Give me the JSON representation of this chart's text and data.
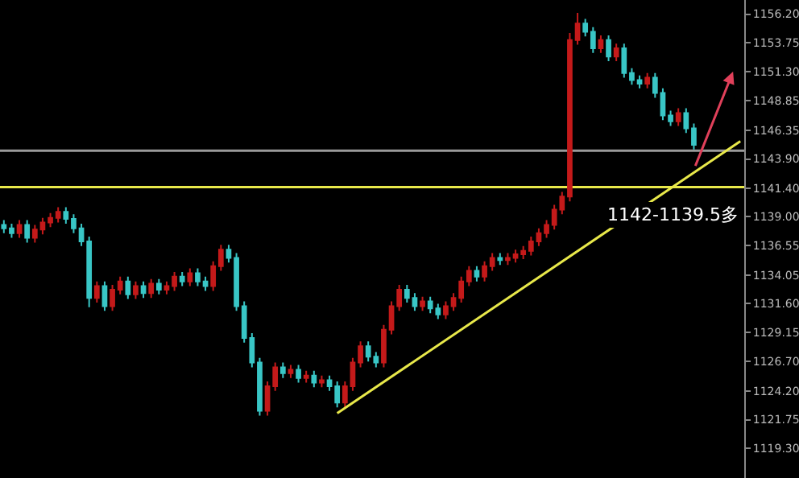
{
  "chart_data": {
    "type": "candlestick",
    "categories": [
      null,
      null,
      null,
      null,
      null,
      null,
      null,
      null,
      null,
      null,
      null,
      null,
      null,
      null,
      null,
      null,
      null,
      null,
      null,
      null,
      null,
      null,
      null,
      null,
      null,
      null,
      null,
      null,
      null,
      null,
      null,
      null,
      null,
      null,
      null,
      null,
      null,
      null,
      null,
      null,
      null,
      null,
      null,
      null,
      null,
      null,
      null,
      null,
      null,
      null,
      null,
      null,
      null,
      null,
      null,
      null,
      null,
      null,
      null,
      null,
      null,
      null,
      null,
      null,
      null,
      null,
      null,
      null,
      null,
      null,
      null,
      null,
      null,
      null,
      null,
      null,
      null,
      null,
      null,
      null,
      null,
      null,
      null,
      null,
      null,
      null,
      null,
      null,
      null,
      null,
      null,
      null,
      null,
      null,
      null,
      null
    ],
    "ohlc": [
      [
        1138.3,
        1138.7,
        1137.6,
        1138.0
      ],
      [
        1138.0,
        1138.4,
        1137.2,
        1137.6
      ],
      [
        1137.6,
        1138.7,
        1137.2,
        1138.3
      ],
      [
        1138.3,
        1138.7,
        1136.8,
        1137.2
      ],
      [
        1137.2,
        1138.3,
        1136.8,
        1137.9
      ],
      [
        1137.9,
        1138.9,
        1137.5,
        1138.5
      ],
      [
        1138.5,
        1139.3,
        1138.1,
        1138.9
      ],
      [
        1138.9,
        1139.8,
        1138.5,
        1139.4
      ],
      [
        1139.4,
        1139.8,
        1138.4,
        1138.8
      ],
      [
        1138.8,
        1139.2,
        1137.6,
        1138.0
      ],
      [
        1138.0,
        1138.4,
        1136.5,
        1136.9
      ],
      [
        1136.9,
        1137.3,
        1131.3,
        1132.1
      ],
      [
        1132.1,
        1133.5,
        1131.7,
        1133.1
      ],
      [
        1133.1,
        1133.5,
        1131.0,
        1131.4
      ],
      [
        1131.4,
        1133.2,
        1131.0,
        1132.8
      ],
      [
        1132.8,
        1133.9,
        1132.4,
        1133.5
      ],
      [
        1133.5,
        1133.9,
        1132.0,
        1132.4
      ],
      [
        1132.4,
        1133.5,
        1132.0,
        1133.1
      ],
      [
        1133.1,
        1133.5,
        1132.1,
        1132.5
      ],
      [
        1132.5,
        1133.7,
        1132.1,
        1133.3
      ],
      [
        1133.3,
        1133.7,
        1132.4,
        1132.8
      ],
      [
        1132.8,
        1133.5,
        1132.4,
        1133.1
      ],
      [
        1133.1,
        1134.3,
        1132.7,
        1133.9
      ],
      [
        1133.9,
        1134.3,
        1133.1,
        1133.5
      ],
      [
        1133.5,
        1134.6,
        1133.1,
        1134.2
      ],
      [
        1134.2,
        1134.6,
        1133.1,
        1133.5
      ],
      [
        1133.5,
        1133.9,
        1132.7,
        1133.1
      ],
      [
        1133.1,
        1135.2,
        1132.7,
        1134.8
      ],
      [
        1134.8,
        1136.6,
        1134.4,
        1136.2
      ],
      [
        1136.2,
        1136.6,
        1135.1,
        1135.5
      ],
      [
        1135.5,
        1135.9,
        1131.0,
        1131.4
      ],
      [
        1131.4,
        1131.8,
        1128.3,
        1128.7
      ],
      [
        1128.7,
        1129.1,
        1126.2,
        1126.6
      ],
      [
        1126.6,
        1127.0,
        1122.1,
        1122.5
      ],
      [
        1122.5,
        1125.0,
        1122.1,
        1124.6
      ],
      [
        1124.6,
        1126.6,
        1124.2,
        1126.2
      ],
      [
        1126.2,
        1126.6,
        1125.3,
        1125.7
      ],
      [
        1125.7,
        1126.4,
        1125.3,
        1126.0
      ],
      [
        1126.0,
        1126.4,
        1124.9,
        1125.3
      ],
      [
        1125.3,
        1125.9,
        1124.9,
        1125.5
      ],
      [
        1125.5,
        1125.9,
        1124.5,
        1124.9
      ],
      [
        1124.9,
        1125.5,
        1124.5,
        1125.1
      ],
      [
        1125.1,
        1125.5,
        1124.2,
        1124.6
      ],
      [
        1124.6,
        1125.0,
        1122.8,
        1123.2
      ],
      [
        1123.2,
        1125.0,
        1122.8,
        1124.6
      ],
      [
        1124.6,
        1127.0,
        1124.2,
        1126.6
      ],
      [
        1126.6,
        1128.4,
        1126.2,
        1128.0
      ],
      [
        1128.0,
        1128.4,
        1126.7,
        1127.1
      ],
      [
        1127.1,
        1127.5,
        1126.2,
        1126.6
      ],
      [
        1126.6,
        1129.8,
        1126.2,
        1129.4
      ],
      [
        1129.4,
        1131.8,
        1129.0,
        1131.4
      ],
      [
        1131.4,
        1133.2,
        1131.0,
        1132.8
      ],
      [
        1132.8,
        1133.2,
        1131.7,
        1132.1
      ],
      [
        1132.1,
        1132.5,
        1131.0,
        1131.4
      ],
      [
        1131.4,
        1132.2,
        1131.0,
        1131.8
      ],
      [
        1131.8,
        1132.2,
        1130.8,
        1131.2
      ],
      [
        1131.2,
        1131.6,
        1130.3,
        1130.7
      ],
      [
        1130.7,
        1131.8,
        1130.3,
        1131.4
      ],
      [
        1131.4,
        1132.5,
        1131.0,
        1132.1
      ],
      [
        1132.1,
        1133.9,
        1131.7,
        1133.5
      ],
      [
        1133.5,
        1134.8,
        1133.1,
        1134.4
      ],
      [
        1134.4,
        1134.8,
        1133.5,
        1133.9
      ],
      [
        1133.9,
        1135.2,
        1133.5,
        1134.8
      ],
      [
        1134.8,
        1135.9,
        1134.4,
        1135.5
      ],
      [
        1135.5,
        1135.9,
        1134.9,
        1135.3
      ],
      [
        1135.3,
        1135.9,
        1134.9,
        1135.5
      ],
      [
        1135.5,
        1136.2,
        1135.1,
        1135.8
      ],
      [
        1135.8,
        1136.5,
        1135.4,
        1136.1
      ],
      [
        1136.1,
        1137.3,
        1135.7,
        1136.9
      ],
      [
        1136.9,
        1138.0,
        1136.5,
        1137.6
      ],
      [
        1137.6,
        1138.7,
        1137.2,
        1138.3
      ],
      [
        1138.3,
        1140.0,
        1137.9,
        1139.6
      ],
      [
        1139.6,
        1141.1,
        1139.2,
        1140.7
      ],
      [
        1140.7,
        1154.6,
        1140.3,
        1154.0
      ],
      [
        1154.0,
        1156.3,
        1153.6,
        1155.4
      ],
      [
        1155.4,
        1155.8,
        1154.3,
        1154.7
      ],
      [
        1154.7,
        1155.1,
        1152.9,
        1153.3
      ],
      [
        1153.3,
        1154.4,
        1152.9,
        1154.0
      ],
      [
        1154.0,
        1154.4,
        1152.2,
        1152.6
      ],
      [
        1152.6,
        1153.7,
        1152.2,
        1153.3
      ],
      [
        1153.3,
        1153.7,
        1150.8,
        1151.2
      ],
      [
        1151.2,
        1151.6,
        1150.2,
        1150.6
      ],
      [
        1150.6,
        1151.0,
        1149.9,
        1150.3
      ],
      [
        1150.3,
        1151.2,
        1149.9,
        1150.8
      ],
      [
        1150.8,
        1151.2,
        1149.1,
        1149.5
      ],
      [
        1149.5,
        1149.9,
        1147.2,
        1147.6
      ],
      [
        1147.6,
        1148.0,
        1146.7,
        1147.1
      ],
      [
        1147.1,
        1148.2,
        1146.7,
        1147.8
      ],
      [
        1147.8,
        1148.2,
        1146.1,
        1146.5
      ],
      [
        1146.5,
        1146.9,
        1144.7,
        1145.1
      ],
      null,
      null,
      null,
      null,
      null,
      null
    ],
    "colors": [
      "#39c6c6",
      "#39c6c6",
      "#c41a1a",
      "#39c6c6",
      "#c41a1a",
      "#c41a1a",
      "#c41a1a",
      "#c41a1a",
      "#39c6c6",
      "#39c6c6",
      "#39c6c6",
      "#39c6c6",
      "#c41a1a",
      "#39c6c6",
      "#c41a1a",
      "#c41a1a",
      "#39c6c6",
      "#c41a1a",
      "#39c6c6",
      "#c41a1a",
      "#39c6c6",
      "#c41a1a",
      "#c41a1a",
      "#39c6c6",
      "#c41a1a",
      "#39c6c6",
      "#39c6c6",
      "#c41a1a",
      "#c41a1a",
      "#39c6c6",
      "#39c6c6",
      "#39c6c6",
      "#39c6c6",
      "#39c6c6",
      "#c41a1a",
      "#c41a1a",
      "#39c6c6",
      "#c41a1a",
      "#39c6c6",
      "#c41a1a",
      "#39c6c6",
      "#c41a1a",
      "#39c6c6",
      "#39c6c6",
      "#c41a1a",
      "#c41a1a",
      "#c41a1a",
      "#39c6c6",
      "#39c6c6",
      "#c41a1a",
      "#c41a1a",
      "#c41a1a",
      "#39c6c6",
      "#39c6c6",
      "#c41a1a",
      "#39c6c6",
      "#39c6c6",
      "#c41a1a",
      "#c41a1a",
      "#c41a1a",
      "#c41a1a",
      "#39c6c6",
      "#c41a1a",
      "#c41a1a",
      "#39c6c6",
      "#c41a1a",
      "#c41a1a",
      "#c41a1a",
      "#c41a1a",
      "#c41a1a",
      "#c41a1a",
      "#c41a1a",
      "#c41a1a",
      "#c41a1a",
      "#c41a1a",
      "#39c6c6",
      "#39c6c6",
      "#c41a1a",
      "#39c6c6",
      "#c41a1a",
      "#39c6c6",
      "#39c6c6",
      "#39c6c6",
      "#c41a1a",
      "#39c6c6",
      "#39c6c6",
      "#39c6c6",
      "#c41a1a",
      "#39c6c6",
      "#39c6c6",
      null,
      null,
      null,
      null,
      null,
      null
    ],
    "series": [
      {
        "type": "line",
        "color": "#e8e84a",
        "values": [
          null,
          null,
          null,
          null,
          null,
          null,
          null,
          null,
          null,
          null,
          null,
          null,
          null,
          null,
          null,
          null,
          null,
          null,
          null,
          null,
          null,
          null,
          null,
          null,
          null,
          null,
          null,
          null,
          null,
          null,
          null,
          null,
          null,
          null,
          null,
          null,
          null,
          null,
          null,
          null,
          null,
          null,
          null,
          1122.3,
          null,
          null,
          null,
          null,
          null,
          null,
          null,
          null,
          null,
          null,
          null,
          null,
          null,
          null,
          null,
          null,
          null,
          null,
          null,
          null,
          null,
          null,
          null,
          null,
          null,
          null,
          null,
          null,
          null,
          null,
          null,
          null,
          null,
          null,
          null,
          null,
          null,
          null,
          null,
          null,
          null,
          null,
          null,
          null,
          null,
          null,
          null,
          null,
          null,
          null,
          null,
          1145.4
        ]
      }
    ],
    "ylim": [
      1116.8,
      1157.4
    ],
    "yticks": [
      {
        "value": 1156.2,
        "label": "1156.20"
      },
      {
        "value": 1153.75,
        "label": "1153.75"
      },
      {
        "value": 1151.3,
        "label": "1151.30"
      },
      {
        "value": 1148.85,
        "label": "1148.85"
      },
      {
        "value": 1146.35,
        "label": "1146.35"
      },
      {
        "value": 1143.9,
        "label": "1143.90"
      },
      {
        "value": 1141.4,
        "label": "1141.40"
      },
      {
        "value": 1139.0,
        "label": "1139.00"
      },
      {
        "value": 1136.55,
        "label": "1136.55"
      },
      {
        "value": 1134.05,
        "label": "1134.05"
      },
      {
        "value": 1131.6,
        "label": "1131.60"
      },
      {
        "value": 1129.15,
        "label": "1129.15"
      },
      {
        "value": 1126.7,
        "label": "1126.70"
      },
      {
        "value": 1124.2,
        "label": "1124.20"
      },
      {
        "value": 1121.75,
        "label": "1121.75"
      },
      {
        "value": 1119.3,
        "label": "1119.30"
      }
    ],
    "ref_lines": [
      {
        "axis": "y",
        "value": 1141.5,
        "color": "#e8e84a"
      },
      {
        "axis": "y",
        "value": 1144.6,
        "color": "#9a9a9a"
      }
    ],
    "annotations": [
      "1142-1139.5多"
    ],
    "grid": false,
    "tick_labels": "y"
  }
}
